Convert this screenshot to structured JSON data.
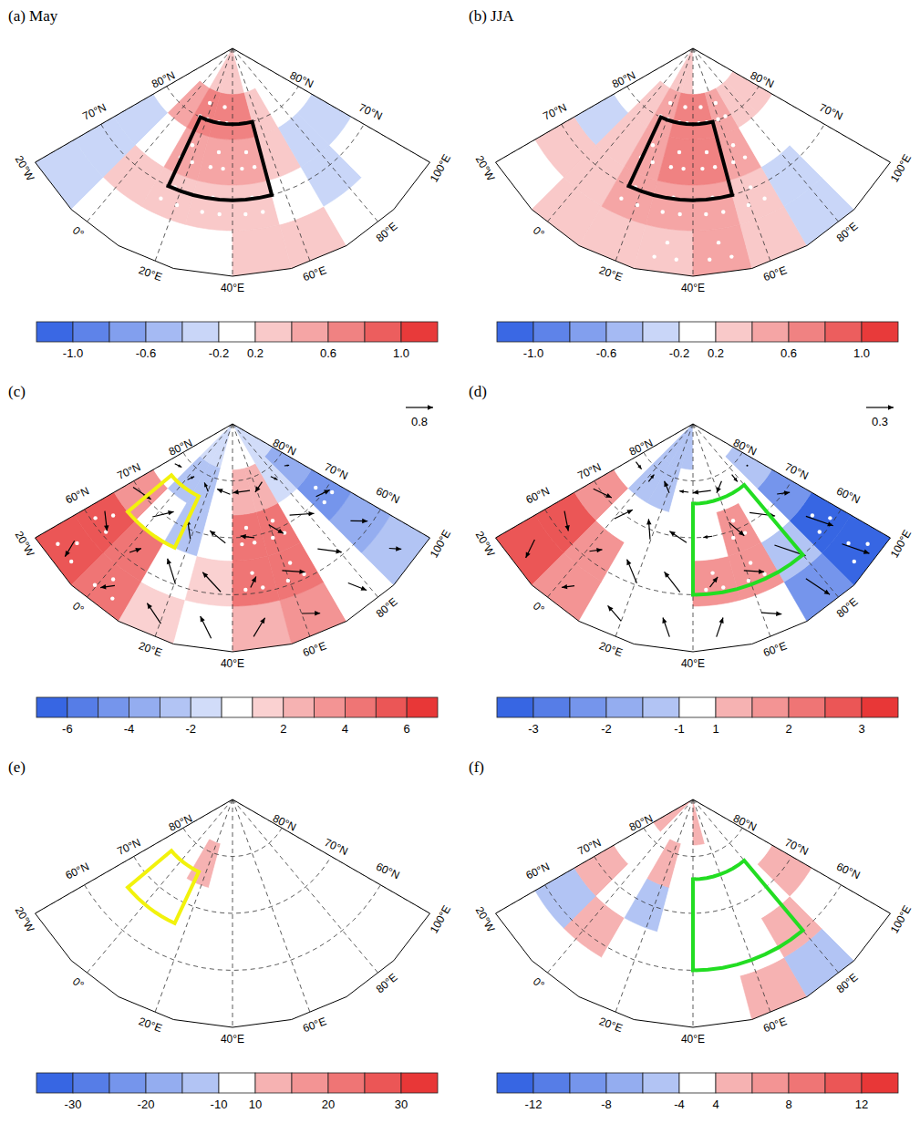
{
  "chart_data": [
    {
      "type": "map",
      "title": "(a) May",
      "xlim": [
        -20,
        100
      ],
      "ylim": [
        60,
        90
      ],
      "xticks": [
        {
          "value": -20,
          "label": "20°W"
        },
        {
          "value": 0,
          "label": "0°"
        },
        {
          "value": 20,
          "label": "20°E"
        },
        {
          "value": 40,
          "label": "40°E"
        },
        {
          "value": 60,
          "label": "60°E"
        },
        {
          "value": 80,
          "label": "80°E"
        },
        {
          "value": 100,
          "label": "100°E"
        }
      ],
      "yticks": [
        {
          "value": 70,
          "label": "70°N"
        },
        {
          "value": 80,
          "label": "80°N"
        }
      ],
      "field": [
        [
          -0.2,
          0.2,
          0.2,
          0.2,
          0.4,
          0.3,
          -0.1,
          0.1
        ],
        [
          -0.3,
          0.3,
          0.3,
          0.4,
          0.4,
          0.2,
          -0.2,
          0.1
        ],
        [
          -0.3,
          0.2,
          0.5,
          0.5,
          0.5,
          0.3,
          -0.3,
          -0.2
        ],
        [
          0.1,
          0.5,
          0.7,
          0.8,
          0.7,
          0.4,
          0,
          -0.1
        ],
        [
          0,
          0.1,
          0.3,
          0.4,
          0.3,
          0.1,
          0,
          0
        ]
      ],
      "significant": [
        [
          0,
          0,
          0,
          0,
          0,
          0,
          0,
          0
        ],
        [
          0,
          0,
          1,
          1,
          1,
          0,
          0,
          0
        ],
        [
          0,
          0,
          1,
          1,
          1,
          0,
          0,
          0
        ],
        [
          0,
          0,
          1,
          1,
          0,
          0,
          0,
          0
        ],
        [
          0,
          0,
          0,
          0,
          0,
          0,
          0,
          0
        ]
      ],
      "boxes": [
        {
          "lon": [
            15,
            55
          ],
          "lat": [
            70,
            80
          ],
          "color": "#000000"
        }
      ],
      "colorbar": {
        "levels": [
          -1.2,
          -1.0,
          -0.8,
          -0.6,
          -0.4,
          -0.2,
          0.2,
          0.4,
          0.6,
          0.8,
          1.0,
          1.2
        ],
        "ticks": [
          {
            "value": -1,
            "label": "-1.0"
          },
          -0.6,
          -0.2,
          0.2,
          0.6,
          {
            "value": 1,
            "label": "1.0"
          }
        ]
      }
    },
    {
      "type": "map",
      "title": "(b) JJA",
      "xlim": [
        -20,
        100
      ],
      "ylim": [
        60,
        90
      ],
      "xticks": [
        {
          "value": -20,
          "label": "20°W"
        },
        {
          "value": 0,
          "label": "0°"
        },
        {
          "value": 20,
          "label": "20°E"
        },
        {
          "value": 40,
          "label": "40°E"
        },
        {
          "value": 60,
          "label": "60°E"
        },
        {
          "value": 80,
          "label": "80°E"
        },
        {
          "value": 100,
          "label": "100°E"
        }
      ],
      "yticks": [
        {
          "value": 70,
          "label": "70°N"
        },
        {
          "value": 80,
          "label": "80°N"
        }
      ],
      "field": [
        [
          0.2,
          0.4,
          0.3,
          0.4,
          0.5,
          0.3,
          -0.2,
          0.2
        ],
        [
          0.3,
          0.4,
          0.5,
          0.6,
          0.6,
          0.3,
          -0.2,
          0.1
        ],
        [
          -0.2,
          0.4,
          0.6,
          0.7,
          0.7,
          0.5,
          0.1,
          0.2
        ],
        [
          -0.1,
          0.3,
          0.6,
          0.8,
          0.7,
          0.5,
          0.3,
          0.3
        ],
        [
          0,
          0.1,
          0.3,
          0.3,
          0.2,
          0.1,
          0,
          0
        ]
      ],
      "significant": [
        [
          0,
          0,
          0,
          1,
          1,
          0,
          0,
          0
        ],
        [
          0,
          0,
          1,
          1,
          1,
          1,
          0,
          0
        ],
        [
          0,
          0,
          1,
          1,
          1,
          1,
          0,
          0
        ],
        [
          0,
          0,
          1,
          1,
          1,
          1,
          0,
          0
        ],
        [
          0,
          0,
          0,
          0,
          0,
          0,
          0,
          0
        ]
      ],
      "boxes": [
        {
          "lon": [
            15,
            55
          ],
          "lat": [
            70,
            80
          ],
          "color": "#000000"
        }
      ],
      "colorbar": {
        "levels": [
          -1.2,
          -1.0,
          -0.8,
          -0.6,
          -0.4,
          -0.2,
          0.2,
          0.4,
          0.6,
          0.8,
          1.0,
          1.2
        ],
        "ticks": [
          {
            "value": -1,
            "label": "-1.0"
          },
          -0.6,
          -0.2,
          0.2,
          0.6,
          {
            "value": 1,
            "label": "1.0"
          }
        ]
      }
    },
    {
      "type": "map",
      "title": "(c)",
      "xlim": [
        -20,
        100
      ],
      "ylim": [
        50,
        90
      ],
      "xticks": [
        {
          "value": -20,
          "label": "20°W"
        },
        {
          "value": 0,
          "label": "0°"
        },
        {
          "value": 20,
          "label": "20°E"
        },
        {
          "value": 40,
          "label": "40°E"
        },
        {
          "value": 60,
          "label": "60°E"
        },
        {
          "value": 80,
          "label": "80°E"
        },
        {
          "value": 100,
          "label": "100°E"
        }
      ],
      "yticks": [
        {
          "value": 60,
          "label": "60°N"
        },
        {
          "value": 70,
          "label": "70°N"
        },
        {
          "value": 80,
          "label": "80°N"
        }
      ],
      "field": [
        [
          6,
          5,
          2,
          1,
          3,
          4,
          0,
          -2
        ],
        [
          6,
          5,
          1,
          2,
          5,
          5,
          1,
          -3
        ],
        [
          4,
          1,
          -2,
          0,
          5,
          5,
          1,
          -4
        ],
        [
          1,
          -2,
          -2,
          1,
          3,
          3,
          -1,
          -3
        ],
        [
          0,
          -1,
          -1,
          0,
          1,
          1,
          -1,
          -1
        ]
      ],
      "significant": [
        [
          1,
          1,
          0,
          0,
          0,
          0,
          0,
          0
        ],
        [
          1,
          0,
          0,
          0,
          1,
          1,
          0,
          0
        ],
        [
          0,
          0,
          0,
          0,
          1,
          1,
          0,
          1
        ],
        [
          0,
          0,
          0,
          0,
          0,
          0,
          0,
          0
        ],
        [
          0,
          0,
          0,
          0,
          0,
          0,
          0,
          0
        ]
      ],
      "boxes": [
        {
          "lon": [
            -10,
            15
          ],
          "lat": [
            66,
            76
          ],
          "color": "#f2f20c"
        }
      ],
      "vectors": {
        "u": [
          [
            0.2,
            -0.3,
            -0.6,
            -0.4,
            0.4,
            0.5,
            0.3,
            0.2
          ],
          [
            0.5,
            0.2,
            -0.5,
            -0.6,
            0.2,
            0.6,
            0.5,
            0.3
          ],
          [
            0.6,
            0.4,
            -0.3,
            -0.5,
            -0.4,
            0.3,
            0.6,
            0.4
          ],
          [
            0.2,
            0.1,
            -0.2,
            -0.4,
            -0.5,
            -0.3,
            0.1,
            0.1
          ]
        ],
        "v": [
          [
            -0.5,
            -0.3,
            0.4,
            0.6,
            0.5,
            -0.2,
            -0.5,
            -0.3
          ],
          [
            -0.3,
            0.3,
            0.6,
            0.5,
            0.3,
            -0.3,
            -0.5,
            -0.4
          ],
          [
            0.2,
            0.5,
            0.5,
            0.3,
            0.1,
            -0.4,
            -0.4,
            -0.2
          ],
          [
            0.1,
            0.2,
            0.2,
            0.1,
            0,
            -0.2,
            -0.2,
            -0.1
          ]
        ]
      },
      "vector_reference": 0.8,
      "colorbar": {
        "levels": [
          -7,
          -6,
          -5,
          -4,
          -3,
          -2,
          -1,
          1,
          2,
          3,
          4,
          5,
          6,
          7
        ],
        "ticks": [
          -6,
          -4,
          -2,
          2,
          4,
          6
        ]
      }
    },
    {
      "type": "map",
      "title": "(d)",
      "xlim": [
        -20,
        100
      ],
      "ylim": [
        50,
        90
      ],
      "xticks": [
        {
          "value": -20,
          "label": "20°W"
        },
        {
          "value": 0,
          "label": "0°"
        },
        {
          "value": 20,
          "label": "20°E"
        },
        {
          "value": 40,
          "label": "40°E"
        },
        {
          "value": 60,
          "label": "60°E"
        },
        {
          "value": 80,
          "label": "80°E"
        },
        {
          "value": 100,
          "label": "100°E"
        }
      ],
      "yticks": [
        {
          "value": 60,
          "label": "60°N"
        },
        {
          "value": 70,
          "label": "70°N"
        },
        {
          "value": 80,
          "label": "80°N"
        }
      ],
      "field": [
        [
          3,
          2,
          1,
          0,
          1,
          1,
          -2,
          -3
        ],
        [
          3,
          2,
          0,
          0,
          2,
          2,
          -1,
          -3
        ],
        [
          2,
          1,
          0,
          0,
          1,
          2,
          0,
          -2
        ],
        [
          0,
          -1,
          -1,
          0,
          1,
          1,
          0,
          -1
        ],
        [
          0,
          -1,
          -1,
          -1,
          0,
          0,
          0,
          0
        ]
      ],
      "significant": [
        [
          0,
          0,
          0,
          0,
          0,
          0,
          0,
          1
        ],
        [
          0,
          0,
          0,
          0,
          1,
          1,
          0,
          1
        ],
        [
          0,
          0,
          0,
          0,
          0,
          1,
          0,
          0
        ],
        [
          0,
          0,
          0,
          0,
          0,
          0,
          0,
          0
        ],
        [
          0,
          0,
          0,
          0,
          0,
          0,
          0,
          0
        ]
      ],
      "boxes": [
        {
          "lon": [
            40,
            80
          ],
          "lat": [
            60,
            76
          ],
          "color": "#22dd22"
        }
      ],
      "vectors": {
        "u": [
          [
            0.1,
            -0.1,
            -0.2,
            -0.1,
            0.1,
            0.2,
            0.1,
            0.1
          ],
          [
            0.2,
            0.1,
            -0.2,
            -0.2,
            0.1,
            0.2,
            0.2,
            0.1
          ],
          [
            0.2,
            0.1,
            -0.1,
            -0.2,
            -0.1,
            0.1,
            0.2,
            0.1
          ],
          [
            0.1,
            0,
            -0.1,
            -0.1,
            -0.2,
            -0.1,
            0,
            0
          ]
        ],
        "v": [
          [
            -0.2,
            -0.1,
            0.1,
            0.2,
            0.2,
            -0.1,
            -0.3,
            -0.3
          ],
          [
            -0.1,
            0.1,
            0.2,
            0.2,
            0.1,
            -0.1,
            -0.3,
            -0.3
          ],
          [
            0.1,
            0.2,
            0.2,
            0.1,
            0,
            -0.2,
            -0.2,
            -0.1
          ],
          [
            0,
            0.1,
            0.1,
            0,
            0,
            -0.1,
            -0.1,
            0
          ]
        ]
      },
      "vector_reference": 0.3,
      "colorbar": {
        "levels": [
          -3.5,
          -3,
          -2.5,
          -2,
          -1.5,
          -1,
          1,
          1.5,
          2,
          2.5,
          3,
          3.5
        ],
        "ticks": [
          -3,
          -2,
          -1,
          1,
          2,
          3
        ]
      }
    },
    {
      "type": "map",
      "title": "(e)",
      "xlim": [
        -20,
        100
      ],
      "ylim": [
        50,
        90
      ],
      "xticks": [
        {
          "value": -20,
          "label": "20°W"
        },
        {
          "value": 0,
          "label": "0°"
        },
        {
          "value": 20,
          "label": "20°E"
        },
        {
          "value": 40,
          "label": "40°E"
        },
        {
          "value": 60,
          "label": "60°E"
        },
        {
          "value": 80,
          "label": "80°E"
        },
        {
          "value": 100,
          "label": "100°E"
        }
      ],
      "yticks": [
        {
          "value": 60,
          "label": "60°N"
        },
        {
          "value": 70,
          "label": "70°N"
        },
        {
          "value": 80,
          "label": "80°N"
        }
      ],
      "field": [
        [
          5,
          -8,
          4,
          -6,
          3,
          -5,
          2,
          -4
        ],
        [
          8,
          6,
          -5,
          4,
          -3,
          6,
          -7,
          3
        ],
        [
          -6,
          10,
          -4,
          7,
          5,
          -3,
          4,
          -5
        ],
        [
          4,
          -5,
          12,
          -3,
          -6,
          5,
          -4,
          2
        ],
        [
          0,
          6,
          -4,
          3,
          -3,
          2,
          5,
          -2
        ]
      ],
      "boxes": [
        {
          "lon": [
            -10,
            15
          ],
          "lat": [
            66,
            76
          ],
          "color": "#f2f20c"
        }
      ],
      "colorbar": {
        "levels": [
          -35,
          -30,
          -25,
          -20,
          -15,
          -10,
          10,
          15,
          20,
          25,
          30,
          35
        ],
        "ticks": [
          -30,
          -20,
          -10,
          10,
          20,
          30
        ]
      }
    },
    {
      "type": "map",
      "title": "(f)",
      "xlim": [
        -20,
        100
      ],
      "ylim": [
        50,
        90
      ],
      "xticks": [
        {
          "value": -20,
          "label": "20°W"
        },
        {
          "value": 0,
          "label": "0°"
        },
        {
          "value": 20,
          "label": "20°E"
        },
        {
          "value": 40,
          "label": "40°E"
        },
        {
          "value": 60,
          "label": "60°E"
        },
        {
          "value": 80,
          "label": "80°E"
        },
        {
          "value": 100,
          "label": "100°E"
        }
      ],
      "yticks": [
        {
          "value": 60,
          "label": "60°N"
        },
        {
          "value": 70,
          "label": "70°N"
        },
        {
          "value": 80,
          "label": "80°N"
        }
      ],
      "field": [
        [
          3,
          -2,
          4,
          2,
          -3,
          5,
          -4,
          2
        ],
        [
          -4,
          5,
          3,
          -2,
          4,
          -3,
          5,
          3
        ],
        [
          5,
          3,
          -4,
          -2,
          3,
          4,
          -2,
          6
        ],
        [
          2,
          -3,
          5,
          4,
          -2,
          3,
          4,
          -3
        ],
        [
          6,
          4,
          2,
          -3,
          5,
          -2,
          3,
          4
        ]
      ],
      "boxes": [
        {
          "lon": [
            40,
            80
          ],
          "lat": [
            60,
            76
          ],
          "color": "#22dd22"
        }
      ],
      "colorbar": {
        "levels": [
          -14,
          -12,
          -10,
          -8,
          -6,
          -4,
          4,
          6,
          8,
          10,
          12,
          14
        ],
        "ticks": [
          -12,
          -8,
          -4,
          4,
          8,
          12
        ]
      }
    }
  ]
}
